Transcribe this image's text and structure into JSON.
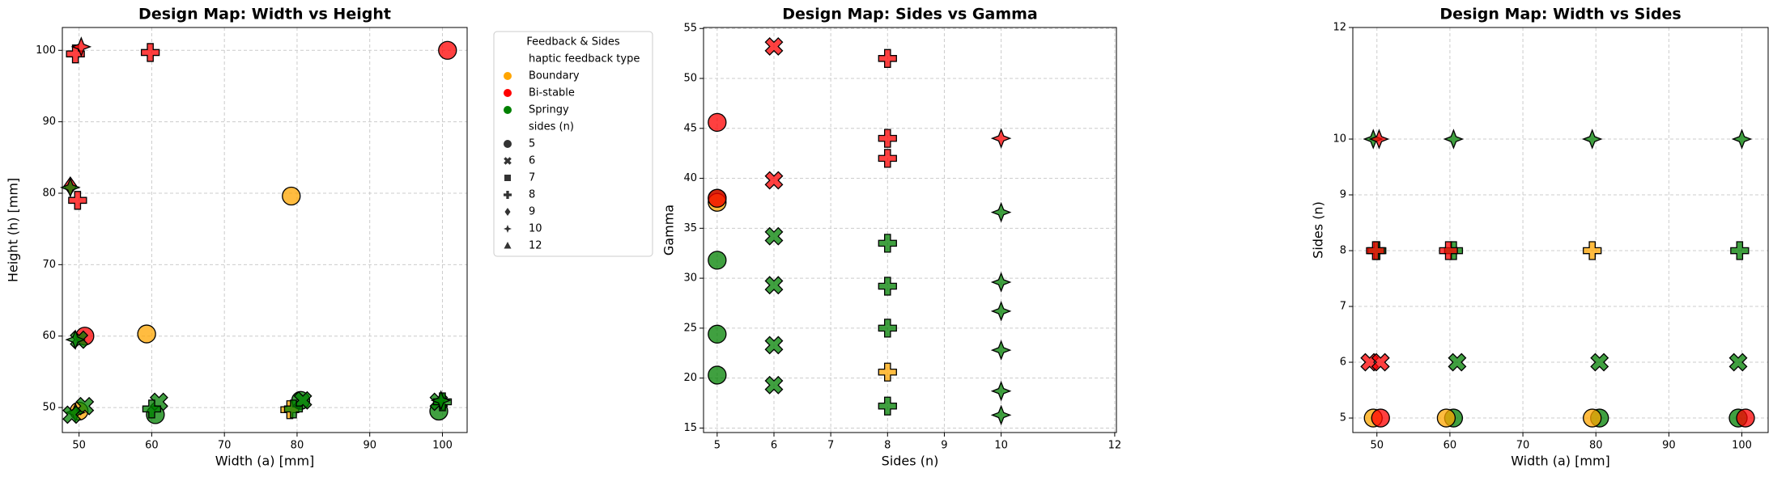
{
  "chart_data": [
    {
      "type": "scatter",
      "title": "Design Map: Width vs Height",
      "xlabel": "Width (a) [mm]",
      "ylabel": "Height (h) [mm]",
      "xlim": [
        47.7,
        103.4
      ],
      "ylim": [
        46.5,
        103.2
      ],
      "xticks": [
        50,
        60,
        70,
        80,
        90,
        100
      ],
      "yticks": [
        50,
        60,
        70,
        80,
        90,
        100
      ],
      "grid": true,
      "legend": {
        "title": "Feedback & Sides",
        "hue_title": "haptic feedback type",
        "size_title": "sides (n)",
        "sides": [
          5,
          6,
          7,
          8,
          9,
          10,
          12
        ]
      },
      "series": [
        {
          "name": "Boundary",
          "color": "orange",
          "x": [
            79.2,
            59.3,
            50,
            79
          ],
          "values": [
            79.6,
            60.3,
            49.5,
            49.7
          ],
          "sides": [
            5,
            5,
            5,
            8
          ]
        },
        {
          "name": "Bi-stable",
          "color": "red",
          "x": [
            49.5,
            50.3,
            59.8,
            100.7,
            48.8,
            49.8,
            50.8
          ],
          "values": [
            99.5,
            100.5,
            99.7,
            100,
            81,
            79,
            60
          ],
          "sides": [
            8,
            10,
            8,
            5,
            9,
            8,
            5
          ]
        },
        {
          "name": "Springy",
          "color": "green",
          "x": [
            60.5,
            80.5,
            99.5,
            50.8,
            61,
            80.8,
            99.5,
            50,
            60,
            79.5,
            100,
            49.5,
            49.5,
            99.8,
            48.8,
            49
          ],
          "values": [
            49,
            51,
            49.5,
            50.2,
            50.8,
            51,
            50.8,
            59.5,
            49.8,
            49.8,
            50.8,
            59.5,
            49.3,
            51,
            80.8,
            49
          ],
          "sides": [
            5,
            5,
            5,
            6,
            6,
            6,
            6,
            6,
            8,
            8,
            8,
            10,
            10,
            10,
            10,
            6
          ]
        }
      ]
    },
    {
      "type": "scatter",
      "title": "Design Map: Sides vs Gamma",
      "xlabel": "Sides (n)",
      "ylabel": "Gamma",
      "xlim": [
        4.76,
        12.03
      ],
      "ylim": [
        14.55,
        55.1
      ],
      "xticks": [
        5,
        6,
        7,
        8,
        9,
        10,
        12
      ],
      "yticks": [
        15,
        20,
        25,
        30,
        35,
        40,
        45,
        50,
        55
      ],
      "grid": true,
      "series": [
        {
          "color": "green",
          "x": [
            5,
            5,
            5,
            5,
            6,
            6,
            6,
            6,
            8,
            8,
            8,
            8,
            10,
            10,
            10,
            10,
            10,
            10
          ],
          "values": [
            38,
            31.8,
            24.4,
            20.3,
            34.2,
            29.3,
            23.3,
            19.3,
            33.5,
            29.2,
            25,
            17.2,
            36.6,
            29.6,
            26.7,
            22.8,
            18.7,
            16.3
          ],
          "sides": [
            5,
            5,
            5,
            5,
            6,
            6,
            6,
            6,
            8,
            8,
            8,
            8,
            10,
            10,
            10,
            10,
            10,
            10
          ]
        },
        {
          "color": "orange",
          "x": [
            5,
            8
          ],
          "values": [
            37.6,
            20.6
          ],
          "sides": [
            5,
            8
          ]
        },
        {
          "color": "red",
          "x": [
            5,
            5,
            6,
            6,
            8,
            8,
            8,
            10
          ],
          "values": [
            45.6,
            38,
            53.2,
            39.8,
            52,
            44,
            42,
            44
          ],
          "sides": [
            5,
            5,
            6,
            6,
            8,
            8,
            8,
            10
          ]
        }
      ]
    },
    {
      "type": "scatter",
      "title": "Design Map: Width vs Sides",
      "xlabel": "Width (a) [mm]",
      "ylabel": "Sides (n)",
      "xlim": [
        46.7,
        103.6
      ],
      "ylim": [
        4.74,
        12
      ],
      "xticks": [
        50,
        60,
        70,
        80,
        90,
        100
      ],
      "yticks": [
        5,
        6,
        7,
        8,
        9,
        10,
        12
      ],
      "grid": true,
      "series": [
        {
          "color": "green",
          "x": [
            60.5,
            80.5,
            99.5,
            61,
            80.5,
            99.5,
            50,
            60.5,
            99.7,
            49.5,
            60.5,
            79.5,
            100
          ],
          "values": [
            5,
            5,
            5,
            6,
            6,
            6,
            8,
            8,
            8,
            10,
            10,
            10,
            10
          ],
          "sides": [
            5,
            5,
            5,
            6,
            6,
            6,
            8,
            8,
            8,
            10,
            10,
            10,
            10
          ]
        },
        {
          "color": "orange",
          "x": [
            49.5,
            59.5,
            79.5,
            79.5
          ],
          "values": [
            5,
            5,
            5,
            8
          ],
          "sides": [
            5,
            5,
            5,
            8
          ]
        },
        {
          "color": "red",
          "x": [
            50.5,
            100.5,
            49,
            50.5,
            49.8,
            59.8,
            50.3
          ],
          "values": [
            5,
            5,
            6,
            6,
            8,
            8,
            10
          ],
          "sides": [
            5,
            5,
            6,
            6,
            8,
            8,
            10
          ]
        }
      ]
    }
  ]
}
